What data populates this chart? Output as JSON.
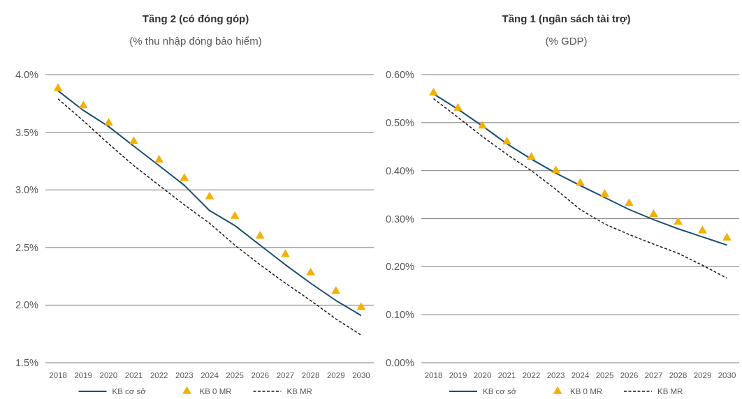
{
  "chart_data": [
    {
      "type": "line",
      "title": "Tầng 2 (có đóng góp)",
      "subtitle": "(% thu nhập đóng bảo hiểm)",
      "categories": [
        "2018",
        "2019",
        "2020",
        "2021",
        "2022",
        "2023",
        "2024",
        "2025",
        "2026",
        "2027",
        "2028",
        "2029",
        "2030"
      ],
      "series": [
        {
          "name": "KB cơ sở",
          "color": "#1a4f72",
          "line_style": "solid",
          "marker": "none",
          "values": [
            3.86,
            3.69,
            3.55,
            3.38,
            3.21,
            3.04,
            2.82,
            2.69,
            2.52,
            2.35,
            2.19,
            2.04,
            1.91
          ]
        },
        {
          "name": "KB 0 MR",
          "type": "scatter",
          "color": "#f5b000",
          "marker": "triangle",
          "values": [
            3.88,
            3.73,
            3.58,
            3.42,
            3.26,
            3.1,
            2.94,
            2.77,
            2.6,
            2.44,
            2.28,
            2.12,
            1.98
          ]
        },
        {
          "name": "KB MR",
          "color": "#1a1a1a",
          "line_style": "dashed",
          "marker": "none",
          "values": [
            3.79,
            3.6,
            3.4,
            3.21,
            3.04,
            2.87,
            2.71,
            2.52,
            2.35,
            2.19,
            2.04,
            1.88,
            1.74
          ]
        }
      ],
      "ylim": [
        1.5,
        4.0
      ],
      "yticks": [
        {
          "value": 1.5,
          "label": "1.5%"
        },
        {
          "value": 2.0,
          "label": "2.0%"
        },
        {
          "value": 2.5,
          "label": "2.5%"
        },
        {
          "value": 3.0,
          "label": "3.0%"
        },
        {
          "value": 3.5,
          "label": "3.5%"
        },
        {
          "value": 4.0,
          "label": "4.0%"
        }
      ],
      "grid": "y",
      "legend": "bottom"
    },
    {
      "type": "line",
      "title": "Tầng 1 (ngân sách tài trợ)",
      "subtitle": "(% GDP)",
      "categories": [
        "2018",
        "2019",
        "2020",
        "2021",
        "2022",
        "2023",
        "2024",
        "2025",
        "2026",
        "2027",
        "2028",
        "2029",
        "2030"
      ],
      "series": [
        {
          "name": "KB cơ sở",
          "color": "#1a4f72",
          "line_style": "solid",
          "marker": "none",
          "values": [
            0.56,
            0.528,
            0.493,
            0.456,
            0.424,
            0.395,
            0.369,
            0.344,
            0.319,
            0.298,
            0.279,
            0.262,
            0.245
          ]
        },
        {
          "name": "KB 0 MR",
          "type": "scatter",
          "color": "#f5b000",
          "marker": "triangle",
          "values": [
            0.562,
            0.53,
            0.493,
            0.46,
            0.428,
            0.4,
            0.374,
            0.351,
            0.332,
            0.309,
            0.293,
            0.275,
            0.26
          ]
        },
        {
          "name": "KB MR",
          "color": "#1a1a1a",
          "line_style": "dashed",
          "marker": "none",
          "values": [
            0.55,
            0.511,
            0.471,
            0.434,
            0.4,
            0.361,
            0.319,
            0.289,
            0.267,
            0.247,
            0.228,
            0.203,
            0.176
          ]
        }
      ],
      "ylim": [
        0,
        0.6
      ],
      "yticks": [
        {
          "value": 0,
          "label": "0.00%"
        },
        {
          "value": 0.1,
          "label": "0.10%"
        },
        {
          "value": 0.2,
          "label": "0.20%"
        },
        {
          "value": 0.3,
          "label": "0.30%"
        },
        {
          "value": 0.4,
          "label": "0.40%"
        },
        {
          "value": 0.5,
          "label": "0.50%"
        },
        {
          "value": 0.6,
          "label": "0.60%"
        }
      ],
      "grid": "y",
      "legend": "bottom"
    }
  ]
}
